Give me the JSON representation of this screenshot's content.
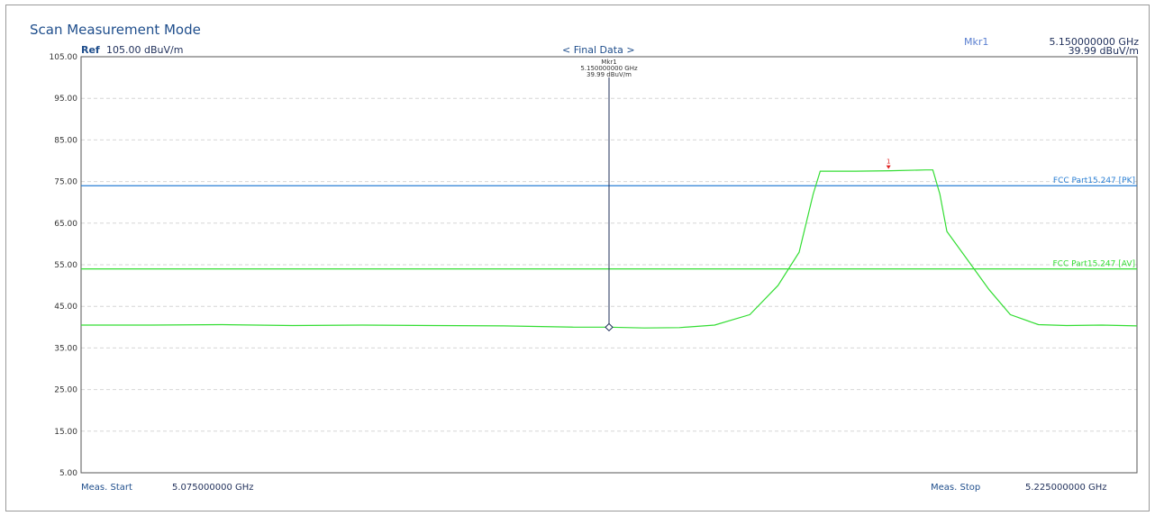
{
  "header": {
    "title": "Scan Measurement Mode",
    "ref_label": "Ref",
    "ref_value": "105.00 dBuV/m",
    "center_label": "< Final Data >",
    "marker_name": "Mkr1",
    "marker_freq": "5.150000000 GHz",
    "marker_level": "39.99 dBuV/m"
  },
  "footer": {
    "start_label": "Meas. Start",
    "start_value": "5.075000000 GHz",
    "stop_label": "Meas. Stop",
    "stop_value": "5.225000000 GHz"
  },
  "chart_data": {
    "type": "line",
    "xlim": [
      5.075,
      5.225
    ],
    "ylim": [
      5,
      105
    ],
    "yticks": [
      "105.00",
      "95.00",
      "85.00",
      "75.00",
      "65.00",
      "55.00",
      "45.00",
      "35.00",
      "25.00",
      "15.00",
      "5.00"
    ],
    "grid": true,
    "series": [
      {
        "color": "#33dd33",
        "x": [
          5.075,
          5.085,
          5.095,
          5.105,
          5.115,
          5.125,
          5.135,
          5.145,
          5.15,
          5.155,
          5.16,
          5.165,
          5.17,
          5.174,
          5.177,
          5.179,
          5.18,
          5.185,
          5.19,
          5.195,
          5.196,
          5.197,
          5.198,
          5.201,
          5.204,
          5.207,
          5.211,
          5.215,
          5.22,
          5.225
        ],
        "y": [
          40.5,
          40.5,
          40.6,
          40.4,
          40.5,
          40.4,
          40.3,
          40.0,
          39.99,
          39.8,
          39.9,
          40.5,
          43.0,
          50.0,
          58.0,
          72.0,
          77.5,
          77.5,
          77.6,
          77.8,
          77.8,
          72.0,
          63.0,
          56.0,
          49.0,
          43.0,
          40.6,
          40.4,
          40.5,
          40.3
        ]
      }
    ],
    "limit_lines": [
      {
        "name": "FCC Part15.247 [PK]",
        "value": 74.0,
        "color": "#2a7fd4"
      },
      {
        "name": "FCC Part15.247 [AV]",
        "value": 54.0,
        "color": "#33dd33"
      }
    ],
    "marker": {
      "label": "Mkr1",
      "x": 5.15,
      "y": 39.99,
      "freq_text": "5.150000000 GHz",
      "level_text": "39.99 dBuV/m",
      "peak_marker_label": "1",
      "peak_marker_x": 5.1897,
      "peak_marker_y": 77.8
    }
  }
}
